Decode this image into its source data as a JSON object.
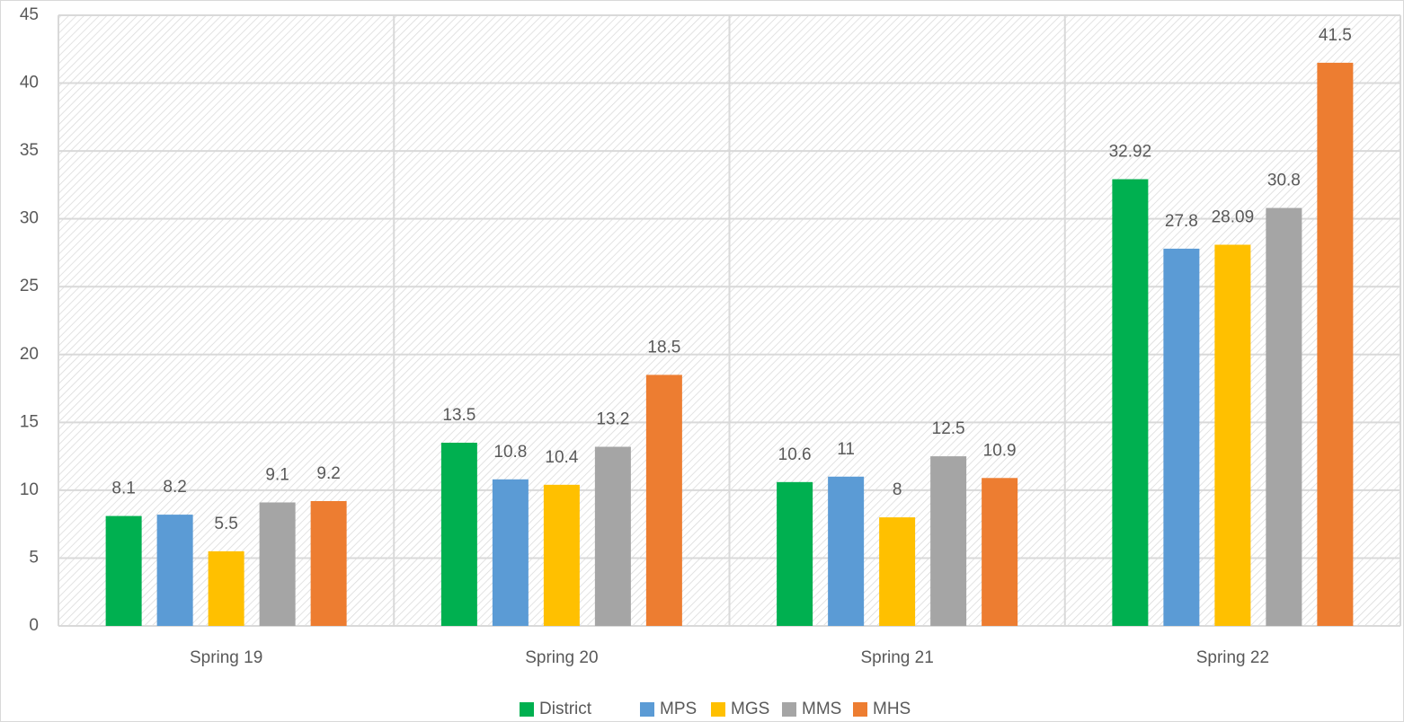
{
  "chart_data": {
    "type": "bar",
    "categories": [
      "Spring 19",
      "Spring 20",
      "Spring 21",
      "Spring 22"
    ],
    "series": [
      {
        "name": "District",
        "color": "#00b050",
        "values": [
          8.1,
          13.5,
          10.6,
          32.92
        ]
      },
      {
        "name": "MPS",
        "color": "#5b9bd5",
        "values": [
          8.2,
          10.8,
          11,
          27.8
        ]
      },
      {
        "name": "MGS",
        "color": "#ffc000",
        "values": [
          5.5,
          10.4,
          8,
          28.09
        ]
      },
      {
        "name": "MMS",
        "color": "#a5a5a5",
        "values": [
          9.1,
          13.2,
          12.5,
          30.8
        ]
      },
      {
        "name": "MHS",
        "color": "#ed7d31",
        "values": [
          9.2,
          18.5,
          10.9,
          41.5
        ]
      }
    ],
    "ylim": [
      0,
      45
    ],
    "yticks": [
      0,
      5,
      10,
      15,
      20,
      25,
      30,
      35,
      40,
      45
    ],
    "grid": true,
    "legend": "bottom"
  }
}
